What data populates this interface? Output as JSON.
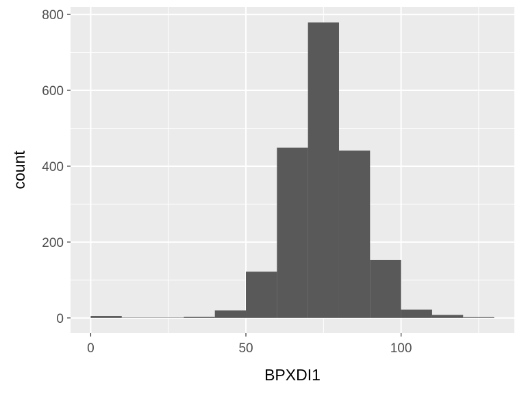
{
  "chart_data": {
    "type": "bar",
    "subtype": "histogram",
    "xlabel": "BPXDI1",
    "ylabel": "count",
    "xlim": [
      -6.5,
      136.5
    ],
    "ylim": [
      -40,
      820
    ],
    "x_ticks": [
      0,
      50,
      100
    ],
    "x_minor_ticks": [
      25,
      75,
      125
    ],
    "y_ticks": [
      0,
      200,
      400,
      600,
      800
    ],
    "y_minor_ticks": [
      100,
      300,
      500,
      700
    ],
    "bin_width": 10,
    "bins": [
      {
        "x0": 0,
        "x1": 10,
        "count": 5
      },
      {
        "x0": 10,
        "x1": 20,
        "count": 1
      },
      {
        "x0": 20,
        "x1": 30,
        "count": 1
      },
      {
        "x0": 30,
        "x1": 40,
        "count": 3
      },
      {
        "x0": 40,
        "x1": 50,
        "count": 20
      },
      {
        "x0": 50,
        "x1": 60,
        "count": 122
      },
      {
        "x0": 60,
        "x1": 70,
        "count": 449
      },
      {
        "x0": 70,
        "x1": 80,
        "count": 779
      },
      {
        "x0": 80,
        "x1": 90,
        "count": 441
      },
      {
        "x0": 90,
        "x1": 100,
        "count": 153
      },
      {
        "x0": 100,
        "x1": 110,
        "count": 22
      },
      {
        "x0": 110,
        "x1": 120,
        "count": 8
      },
      {
        "x0": 120,
        "x1": 130,
        "count": 2
      }
    ],
    "colors": {
      "panel": "#ebebeb",
      "grid": "#ffffff",
      "bar": "#595959",
      "tick_text": "#4d4d4d",
      "tick_mark": "#333333"
    },
    "grid": true,
    "legend": "none"
  }
}
